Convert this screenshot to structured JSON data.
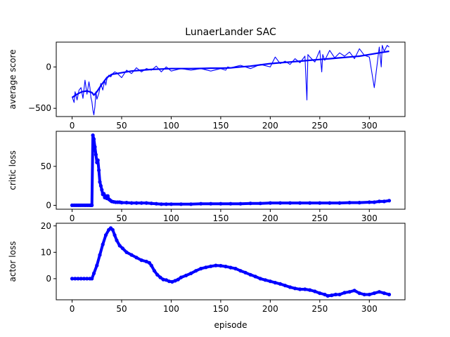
{
  "figure": {
    "title": "LunaerLander SAC",
    "xlabel": "episode"
  },
  "colors": {
    "series": "#0000ff",
    "axis": "#000000",
    "background": "#ffffff"
  },
  "chart_data": [
    {
      "type": "line",
      "title": "LunaerLander SAC",
      "xlabel": "",
      "ylabel": "average score",
      "xlim": [
        -16,
        336
      ],
      "ylim": [
        -600,
        300
      ],
      "xticks": [
        0,
        50,
        100,
        150,
        200,
        250,
        300
      ],
      "yticks": [
        -500,
        0
      ],
      "grid": false,
      "series": [
        {
          "style": "thin-line",
          "x": [
            0,
            2,
            3,
            5,
            7,
            9,
            11,
            13,
            15,
            17,
            18,
            19,
            20,
            21,
            22,
            23,
            24,
            25,
            27,
            29,
            31,
            33,
            34,
            35,
            37,
            39,
            41,
            43,
            45,
            50,
            55,
            60,
            65,
            70,
            75,
            80,
            85,
            90,
            95,
            100,
            110,
            120,
            130,
            140,
            150,
            155,
            157,
            160,
            170,
            180,
            190,
            200,
            205,
            210,
            215,
            220,
            225,
            230,
            235,
            237,
            238,
            240,
            245,
            250,
            252,
            253,
            255,
            260,
            265,
            270,
            275,
            280,
            285,
            290,
            295,
            300,
            305,
            310,
            312,
            313,
            315,
            318,
            320
          ],
          "y": [
            -360,
            -430,
            -300,
            -400,
            -280,
            -250,
            -380,
            -160,
            -330,
            -180,
            -250,
            -370,
            -420,
            -520,
            -580,
            -480,
            -300,
            -390,
            -320,
            -200,
            -280,
            -160,
            -220,
            -150,
            -100,
            -120,
            -80,
            -60,
            -70,
            -130,
            -40,
            -80,
            -10,
            -60,
            -20,
            -40,
            10,
            -60,
            0,
            -50,
            -20,
            -40,
            -20,
            -50,
            -20,
            -40,
            0,
            -10,
            20,
            -20,
            30,
            0,
            120,
            40,
            70,
            30,
            100,
            50,
            130,
            -400,
            150,
            120,
            60,
            200,
            -60,
            150,
            80,
            200,
            110,
            170,
            130,
            180,
            100,
            220,
            140,
            120,
            -250,
            240,
            0,
            260,
            190,
            260,
            240
          ]
        },
        {
          "style": "thick-line",
          "x": [
            0,
            5,
            10,
            15,
            20,
            22,
            25,
            30,
            35,
            40,
            45,
            50,
            60,
            70,
            80,
            90,
            100,
            110,
            120,
            130,
            140,
            150,
            160,
            170,
            180,
            190,
            200,
            210,
            220,
            230,
            240,
            250,
            260,
            270,
            280,
            290,
            300,
            310,
            320
          ],
          "y": [
            -370,
            -330,
            -300,
            -290,
            -310,
            -340,
            -300,
            -210,
            -130,
            -90,
            -80,
            -70,
            -50,
            -40,
            -30,
            -25,
            -20,
            -20,
            -20,
            -18,
            -15,
            -15,
            -12,
            0,
            10,
            25,
            40,
            50,
            60,
            70,
            80,
            90,
            100,
            110,
            120,
            130,
            150,
            170,
            190
          ]
        }
      ]
    },
    {
      "type": "scatter",
      "xlabel": "",
      "ylabel": "critic loss",
      "xlim": [
        -16,
        336
      ],
      "ylim": [
        -5,
        95
      ],
      "xticks": [
        0,
        50,
        100,
        150,
        200,
        250,
        300
      ],
      "yticks": [
        0,
        50
      ],
      "grid": false,
      "series": [
        {
          "style": "dots",
          "x": [
            0,
            2,
            4,
            6,
            8,
            10,
            12,
            14,
            16,
            18,
            19,
            20,
            21,
            22,
            23,
            24,
            25,
            26,
            27,
            28,
            29,
            30,
            31,
            32,
            33,
            34,
            35,
            36,
            37,
            38,
            39,
            40,
            42,
            44,
            46,
            48,
            50,
            55,
            60,
            65,
            70,
            75,
            80,
            85,
            90,
            95,
            100,
            110,
            120,
            130,
            140,
            150,
            160,
            170,
            180,
            190,
            200,
            210,
            220,
            230,
            240,
            250,
            260,
            270,
            280,
            290,
            300,
            305,
            310,
            315,
            320
          ],
          "y": [
            0,
            0,
            0,
            0,
            0,
            0,
            0,
            0,
            0,
            0,
            0,
            0,
            90,
            85,
            75,
            65,
            55,
            58,
            45,
            30,
            25,
            20,
            14,
            15,
            10,
            12,
            9,
            12,
            8,
            7,
            6,
            5,
            4.5,
            4,
            4,
            4,
            3.5,
            3.5,
            3,
            3,
            3,
            3,
            2.5,
            2,
            1.5,
            1.5,
            1.5,
            1.5,
            1.5,
            2,
            2,
            2,
            2,
            2,
            2.5,
            2.5,
            3,
            3,
            3,
            3,
            3,
            3,
            3,
            3,
            3.5,
            3.5,
            4,
            4,
            5,
            5,
            6
          ]
        }
      ]
    },
    {
      "type": "scatter",
      "xlabel": "episode",
      "ylabel": "actor loss",
      "xlim": [
        -16,
        336
      ],
      "ylim": [
        -8,
        21
      ],
      "xticks": [
        0,
        50,
        100,
        150,
        200,
        250,
        300
      ],
      "yticks": [
        0,
        10,
        20
      ],
      "grid": false,
      "series": [
        {
          "style": "dots",
          "x": [
            0,
            3,
            6,
            9,
            12,
            15,
            18,
            20,
            22,
            25,
            28,
            31,
            34,
            37,
            39,
            41,
            43,
            45,
            48,
            51,
            55,
            60,
            65,
            70,
            75,
            78,
            80,
            83,
            86,
            89,
            92,
            95,
            98,
            101,
            104,
            107,
            110,
            115,
            120,
            125,
            130,
            135,
            140,
            145,
            150,
            155,
            160,
            165,
            170,
            175,
            180,
            185,
            190,
            195,
            200,
            205,
            210,
            215,
            220,
            225,
            230,
            235,
            240,
            245,
            250,
            255,
            258,
            262,
            266,
            270,
            275,
            280,
            285,
            290,
            295,
            300,
            305,
            310,
            315,
            320
          ],
          "y": [
            0,
            0,
            0,
            0,
            0,
            0,
            0,
            0,
            2,
            5,
            9,
            13,
            16.5,
            18.5,
            19.2,
            18.5,
            16.5,
            14.5,
            12.5,
            11.5,
            10,
            9,
            8,
            7,
            6.5,
            6,
            5,
            3,
            1.5,
            0.5,
            -0.3,
            -0.5,
            -1,
            -1.2,
            -0.8,
            -0.3,
            0.5,
            1.2,
            2,
            3,
            3.8,
            4.3,
            4.7,
            5,
            4.9,
            4.6,
            4.2,
            3.8,
            3,
            2.3,
            1.5,
            0.8,
            0,
            -0.5,
            -1,
            -1.5,
            -2,
            -2.6,
            -3.2,
            -3.7,
            -4,
            -4,
            -4.3,
            -4.8,
            -5.5,
            -6,
            -6.5,
            -6.3,
            -6,
            -6,
            -5.3,
            -5,
            -4.5,
            -5.5,
            -6,
            -6,
            -5.5,
            -5,
            -5.5,
            -6
          ]
        }
      ]
    }
  ]
}
